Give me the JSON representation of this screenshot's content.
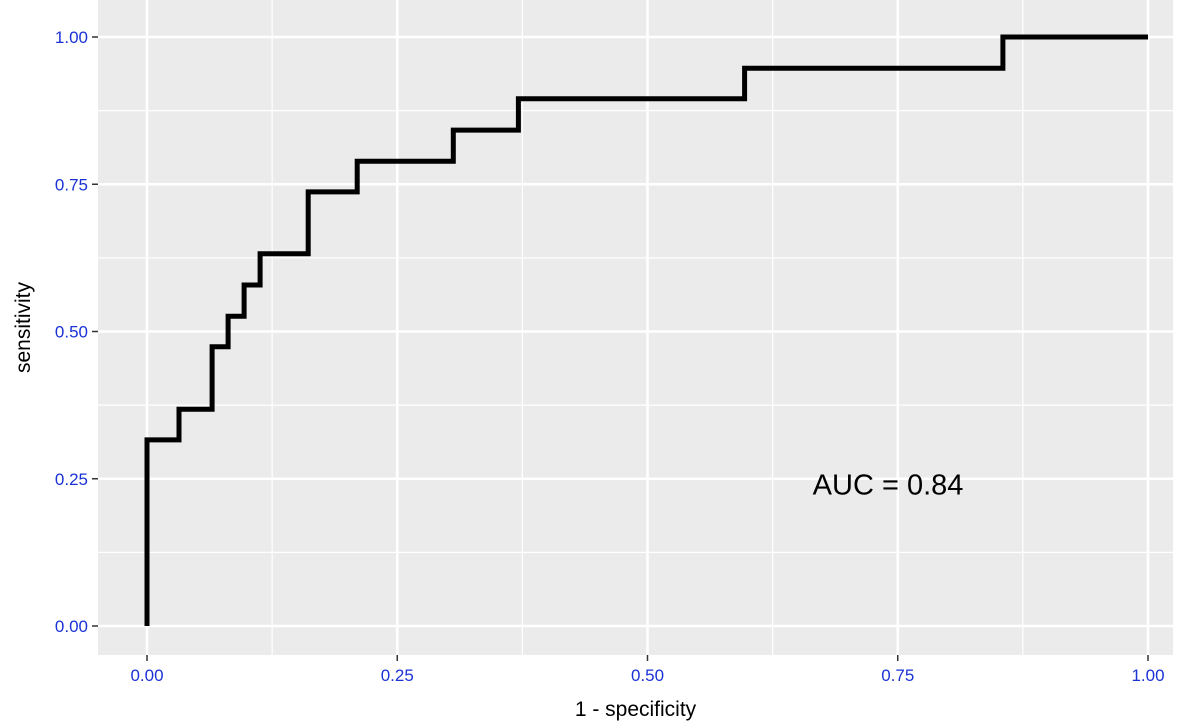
{
  "chart_data": {
    "type": "line",
    "title": "",
    "xlabel": "1 - specificity",
    "ylabel": "sensitivity",
    "xlim": [
      0,
      1
    ],
    "ylim": [
      0,
      1
    ],
    "x_ticks": [
      "0.00",
      "0.25",
      "0.50",
      "0.75",
      "1.00"
    ],
    "y_ticks": [
      "0.00",
      "0.25",
      "0.50",
      "0.75",
      "1.00"
    ],
    "grid": true,
    "line_style": "step",
    "series": [
      {
        "name": "",
        "points": [
          [
            0.0,
            0.0
          ],
          [
            0.0,
            0.316
          ],
          [
            0.032,
            0.316
          ],
          [
            0.032,
            0.368
          ],
          [
            0.065,
            0.368
          ],
          [
            0.065,
            0.474
          ],
          [
            0.081,
            0.474
          ],
          [
            0.081,
            0.526
          ],
          [
            0.097,
            0.526
          ],
          [
            0.097,
            0.579
          ],
          [
            0.113,
            0.579
          ],
          [
            0.113,
            0.632
          ],
          [
            0.161,
            0.632
          ],
          [
            0.161,
            0.737
          ],
          [
            0.21,
            0.737
          ],
          [
            0.21,
            0.789
          ],
          [
            0.306,
            0.789
          ],
          [
            0.306,
            0.842
          ],
          [
            0.371,
            0.842
          ],
          [
            0.371,
            0.895
          ],
          [
            0.597,
            0.895
          ],
          [
            0.597,
            0.947
          ],
          [
            0.855,
            0.947
          ],
          [
            0.855,
            1.0
          ],
          [
            1.0,
            1.0
          ]
        ]
      }
    ],
    "annotations": [
      {
        "text": "AUC = 0.84",
        "x": 0.68,
        "y": 0.24
      }
    ],
    "colors": {
      "panel": "#ebebeb",
      "grid": "#ffffff",
      "line": "#000000",
      "tick_label": "#1a32d6"
    }
  }
}
